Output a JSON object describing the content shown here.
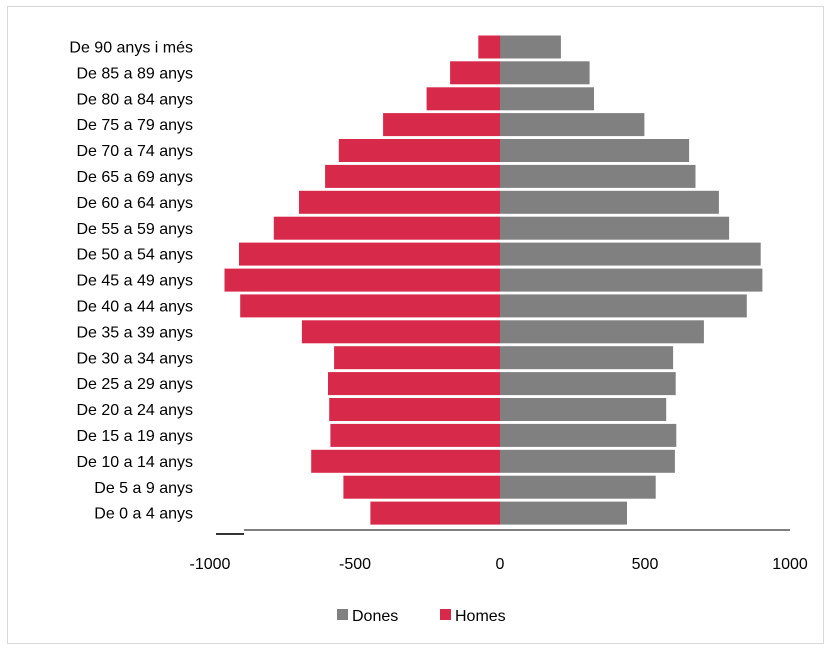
{
  "chart_data": {
    "type": "bar",
    "orientation": "horizontal",
    "subtype": "population-pyramid",
    "categories": [
      "De 0 a 4 anys",
      "De 5 a 9 anys",
      "De 10 a 14 anys",
      "De 15 a 19 anys",
      "De 20 a 24 anys",
      "De 25 a 29 anys",
      "De 30 a 34 anys",
      "De 35 a 39 anys",
      "De 40 a 44 anys",
      "De 45 a 49 anys",
      "De 50 a 54 anys",
      "De 55 a 59 anys",
      "De 60 a 64 anys",
      "De 65 a 69 anys",
      "De 70 a 74 anys",
      "De 75 a 79 anys",
      "De 80 a 84 anys",
      "De 85 a 89 anys",
      "De 90 anys i més"
    ],
    "series": [
      {
        "name": "Dones",
        "color": "#808080",
        "values": [
          438,
          537,
          603,
          608,
          573,
          606,
          597,
          703,
          851,
          905,
          899,
          790,
          755,
          674,
          652,
          498,
          324,
          309,
          210
        ]
      },
      {
        "name": "Homes",
        "color": "#d7294a",
        "values": [
          -447,
          -540,
          -651,
          -585,
          -589,
          -593,
          -572,
          -683,
          -896,
          -950,
          -900,
          -780,
          -693,
          -603,
          -556,
          -403,
          -253,
          -172,
          -75
        ]
      }
    ],
    "xlim": [
      -1000,
      1000
    ],
    "xticks": [
      "-1000",
      "-500",
      "0",
      "500",
      "1000"
    ],
    "xlabel": "",
    "ylabel": "",
    "title": "",
    "legend_position": "bottom",
    "grid": false
  }
}
